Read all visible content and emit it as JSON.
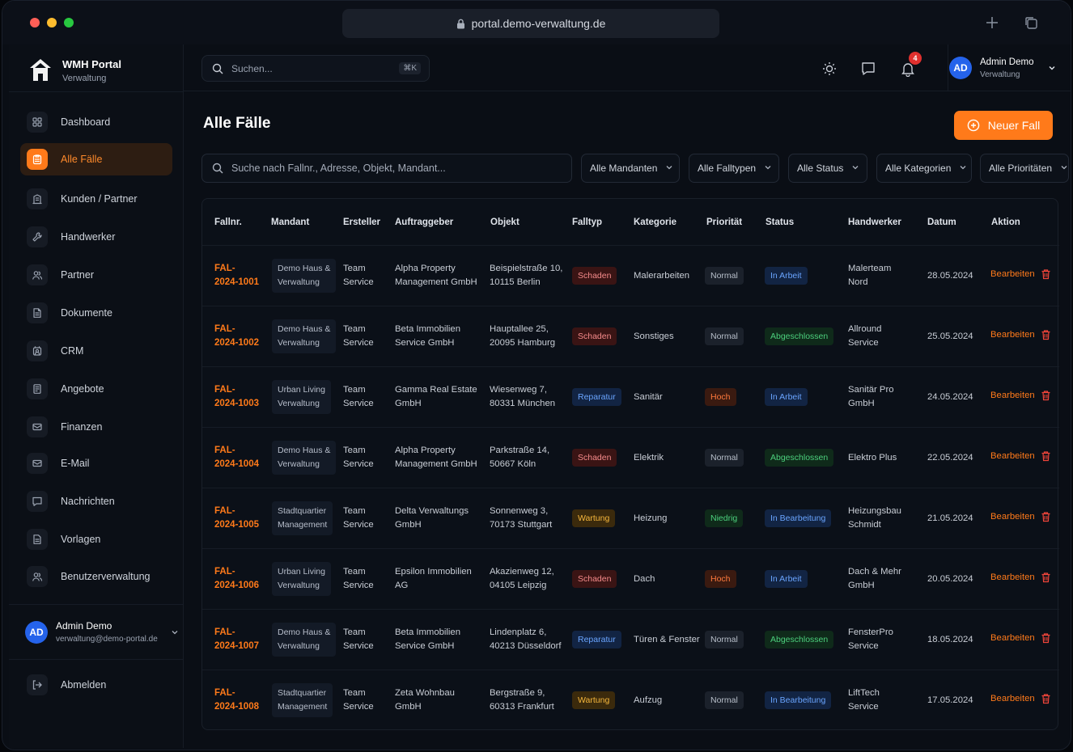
{
  "browser": {
    "url": "portal.demo-verwaltung.de"
  },
  "brand": {
    "title": "WMH Portal",
    "subtitle": "Verwaltung"
  },
  "nav": [
    {
      "label": "Dashboard",
      "icon": "grid-icon"
    },
    {
      "label": "Alle Fälle",
      "icon": "clipboard-icon",
      "active": true
    },
    {
      "label": "Kunden / Partner",
      "icon": "building-icon"
    },
    {
      "label": "Handwerker",
      "icon": "wrench-icon"
    },
    {
      "label": "Partner",
      "icon": "users-icon"
    },
    {
      "label": "Dokumente",
      "icon": "document-icon"
    },
    {
      "label": "CRM",
      "icon": "crm-icon"
    },
    {
      "label": "Angebote",
      "icon": "offer-icon"
    },
    {
      "label": "Finanzen",
      "icon": "finance-icon"
    },
    {
      "label": "E-Mail",
      "icon": "mail-icon"
    },
    {
      "label": "Nachrichten",
      "icon": "message-icon"
    },
    {
      "label": "Vorlagen",
      "icon": "template-icon"
    },
    {
      "label": "Benutzerverwaltung",
      "icon": "user-admin-icon"
    }
  ],
  "sidebar_user": {
    "initials": "AD",
    "name": "Admin Demo",
    "email": "verwaltung@demo-portal.de"
  },
  "logout_label": "Abmelden",
  "topbar": {
    "search_placeholder": "Suchen...",
    "shortcut": "⌘K",
    "notifications": "4",
    "user": {
      "initials": "AD",
      "name": "Admin Demo",
      "role": "Verwaltung"
    }
  },
  "page": {
    "title": "Alle Fälle",
    "new_button": "Neuer Fall",
    "filter_placeholder": "Suche nach Fallnr., Adresse, Objekt, Mandant...",
    "filters": [
      "Alle Mandanten",
      "Alle Falltypen",
      "Alle Status",
      "Alle Kategorien",
      "Alle Prioritäten"
    ]
  },
  "table": {
    "columns": [
      "Fallnr.",
      "Mandant",
      "Ersteller",
      "Auftraggeber",
      "Objekt",
      "Falltyp",
      "Kategorie",
      "Priorität",
      "Status",
      "Handwerker",
      "Datum",
      "Aktion"
    ],
    "edit_label": "Bearbeiten",
    "rows": [
      {
        "nr1": "FAL-",
        "nr2": "2024-1001",
        "m1": "Demo Haus &",
        "m2": "Verwaltung",
        "e1": "Team",
        "e2": "Service",
        "a1": "Alpha Property",
        "a2": "Management GmbH",
        "o1": "Beispielstraße 10,",
        "o2": "10115 Berlin",
        "typ": "Schaden",
        "kat": "Malerarbeiten",
        "prio": "Normal",
        "status": "In Arbeit",
        "h1": "Malerteam",
        "h2": "Nord",
        "datum": "28.05.2024"
      },
      {
        "nr1": "FAL-",
        "nr2": "2024-1002",
        "m1": "Demo Haus &",
        "m2": "Verwaltung",
        "e1": "Team",
        "e2": "Service",
        "a1": "Beta Immobilien",
        "a2": "Service GmbH",
        "o1": "Hauptallee 25,",
        "o2": "20095 Hamburg",
        "typ": "Schaden",
        "kat": "Sonstiges",
        "prio": "Normal",
        "status": "Abgeschlossen",
        "h1": "Allround",
        "h2": "Service",
        "datum": "25.05.2024"
      },
      {
        "nr1": "FAL-",
        "nr2": "2024-1003",
        "m1": "Urban Living",
        "m2": "Verwaltung",
        "e1": "Team",
        "e2": "Service",
        "a1": "Gamma Real Estate",
        "a2": "GmbH",
        "o1": "Wiesenweg 7,",
        "o2": "80331 München",
        "typ": "Reparatur",
        "kat": "Sanitär",
        "prio": "Hoch",
        "status": "In Arbeit",
        "h1": "Sanitär Pro",
        "h2": "GmbH",
        "datum": "24.05.2024"
      },
      {
        "nr1": "FAL-",
        "nr2": "2024-1004",
        "m1": "Demo Haus &",
        "m2": "Verwaltung",
        "e1": "Team",
        "e2": "Service",
        "a1": "Alpha Property",
        "a2": "Management GmbH",
        "o1": "Parkstraße 14,",
        "o2": "50667 Köln",
        "typ": "Schaden",
        "kat": "Elektrik",
        "prio": "Normal",
        "status": "Abgeschlossen",
        "h1": "Elektro Plus",
        "h2": "",
        "datum": "22.05.2024"
      },
      {
        "nr1": "FAL-",
        "nr2": "2024-1005",
        "m1": "Stadtquartier",
        "m2": "Management",
        "e1": "Team",
        "e2": "Service",
        "a1": "Delta Verwaltungs",
        "a2": "GmbH",
        "o1": "Sonnenweg 3,",
        "o2": "70173 Stuttgart",
        "typ": "Wartung",
        "kat": "Heizung",
        "prio": "Niedrig",
        "status": "In Bearbeitung",
        "h1": "Heizungsbau",
        "h2": "Schmidt",
        "datum": "21.05.2024"
      },
      {
        "nr1": "FAL-",
        "nr2": "2024-1006",
        "m1": "Urban Living",
        "m2": "Verwaltung",
        "e1": "Team",
        "e2": "Service",
        "a1": "Epsilon Immobilien",
        "a2": "AG",
        "o1": "Akazienweg 12,",
        "o2": "04105 Leipzig",
        "typ": "Schaden",
        "kat": "Dach",
        "prio": "Hoch",
        "status": "In Arbeit",
        "h1": "Dach & Mehr",
        "h2": "GmbH",
        "datum": "20.05.2024"
      },
      {
        "nr1": "FAL-",
        "nr2": "2024-1007",
        "m1": "Demo Haus &",
        "m2": "Verwaltung",
        "e1": "Team",
        "e2": "Service",
        "a1": "Beta Immobilien",
        "a2": "Service GmbH",
        "o1": "Lindenplatz 6,",
        "o2": "40213 Düsseldorf",
        "typ": "Reparatur",
        "kat": "Türen & Fenster",
        "prio": "Normal",
        "status": "Abgeschlossen",
        "h1": "FensterPro",
        "h2": "Service",
        "datum": "18.05.2024"
      },
      {
        "nr1": "FAL-",
        "nr2": "2024-1008",
        "m1": "Stadtquartier",
        "m2": "Management",
        "e1": "Team",
        "e2": "Service",
        "a1": "Zeta Wohnbau",
        "a2": "GmbH",
        "o1": "Bergstraße 9,",
        "o2": "60313 Frankfurt",
        "typ": "Wartung",
        "kat": "Aufzug",
        "prio": "Normal",
        "status": "In Bearbeitung",
        "h1": "LiftTech",
        "h2": "Service",
        "datum": "17.05.2024"
      }
    ]
  },
  "colors": {
    "accent": "#ff7a1a",
    "typ": {
      "Schaden": [
        "#3a1414",
        "#f58b8b"
      ],
      "Reparatur": [
        "#122443",
        "#6aa5ff"
      ],
      "Wartung": [
        "#3b2a0c",
        "#f6b73c"
      ]
    },
    "prio": {
      "Normal": [
        "#1b212b",
        "#b8bfca"
      ],
      "Hoch": [
        "#3a1a10",
        "#ff7a3d"
      ],
      "Niedrig": [
        "#0f2a1a",
        "#4cd07d"
      ]
    },
    "status": {
      "In Arbeit": [
        "#122443",
        "#6aa5ff"
      ],
      "Abgeschlossen": [
        "#0f2a1a",
        "#4cd07d"
      ],
      "In Bearbeitung": [
        "#122443",
        "#6aa5ff"
      ]
    }
  }
}
